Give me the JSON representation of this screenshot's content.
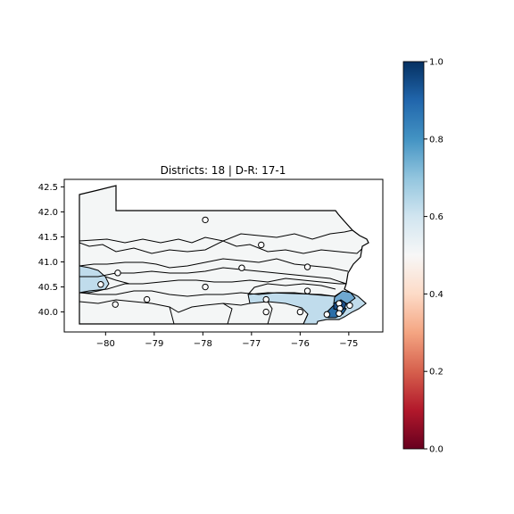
{
  "chart_data": {
    "type": "choropleth-map",
    "title": "Districts: 18 | D-R: 17-1",
    "xlim": [
      -80.85,
      -74.3
    ],
    "ylim": [
      39.6,
      42.65
    ],
    "x_ticks": [
      -80,
      -79,
      -78,
      -77,
      -76,
      -75
    ],
    "y_ticks": [
      40.0,
      40.5,
      41.0,
      41.5,
      42.0,
      42.5
    ],
    "x_tick_labels": [
      "−80",
      "−79",
      "−78",
      "−77",
      "−76",
      "−75"
    ],
    "y_tick_labels": [
      "40.0",
      "40.5",
      "41.0",
      "41.5",
      "42.0",
      "42.5"
    ],
    "colorbar": {
      "colormap": "RdBu",
      "range": [
        0.0,
        1.0
      ],
      "ticks": [
        0.0,
        0.2,
        0.4,
        0.6,
        0.8,
        1.0
      ],
      "tick_labels": [
        "0.0",
        "0.2",
        "0.4",
        "0.6",
        "0.8",
        "1.0"
      ]
    },
    "colors": {
      "neutral_fill": "#f4f6f6",
      "light_blue_fill": "#c0dcec",
      "mid_blue_fill": "#6fa8d0",
      "dark_blue_fill": "#2b6ea8",
      "navy_fill": "#1b4f8a",
      "boundary": "#000000"
    },
    "district_centers": [
      {
        "lon": -80.1,
        "lat": 40.55
      },
      {
        "lon": -79.8,
        "lat": 40.15
      },
      {
        "lon": -79.75,
        "lat": 40.78
      },
      {
        "lon": -79.15,
        "lat": 40.25
      },
      {
        "lon": -77.95,
        "lat": 41.84
      },
      {
        "lon": -77.95,
        "lat": 40.5
      },
      {
        "lon": -77.2,
        "lat": 40.88
      },
      {
        "lon": -76.8,
        "lat": 41.34
      },
      {
        "lon": -76.7,
        "lat": 40.25
      },
      {
        "lon": -76.7,
        "lat": 40.0
      },
      {
        "lon": -75.85,
        "lat": 40.9
      },
      {
        "lon": -75.85,
        "lat": 40.42
      },
      {
        "lon": -76.0,
        "lat": 40.0
      },
      {
        "lon": -75.45,
        "lat": 39.95
      },
      {
        "lon": -75.2,
        "lat": 40.17
      },
      {
        "lon": -75.18,
        "lat": 40.07
      },
      {
        "lon": -75.2,
        "lat": 39.97
      },
      {
        "lon": -74.98,
        "lat": 40.13
      }
    ]
  }
}
